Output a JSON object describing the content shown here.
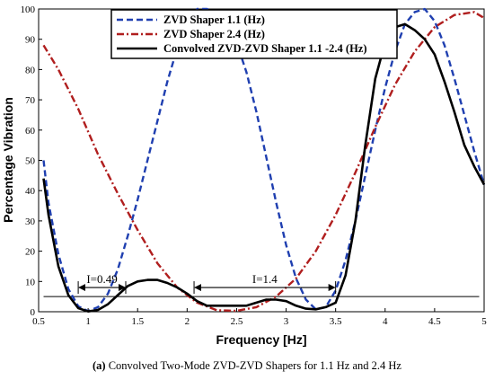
{
  "caption": {
    "tag": "(a)",
    "text": "Convolved Two-Mode ZVD-ZVD Shapers for 1.1 Hz and 2.4 Hz"
  },
  "chart_data": {
    "type": "line",
    "title": "",
    "xlabel": "Frequency [Hz]",
    "ylabel": "Percentage Vibration",
    "xlim": [
      0.5,
      5
    ],
    "ylim": [
      0,
      100
    ],
    "xticks": [
      "0.5",
      "1",
      "1.5",
      "2",
      "2.5",
      "3",
      "3.5",
      "4",
      "4.5",
      "5"
    ],
    "yticks": [
      "0",
      "10",
      "20",
      "30",
      "40",
      "50",
      "60",
      "70",
      "80",
      "90",
      "100"
    ],
    "grid": false,
    "legend_position": "top-left",
    "series": [
      {
        "name": "ZVD Shaper 1.1 (Hz)",
        "color": "#1f3fb0",
        "style": "dashed",
        "x": [
          0.55,
          0.6,
          0.7,
          0.8,
          0.9,
          1.0,
          1.1,
          1.2,
          1.3,
          1.4,
          1.5,
          1.6,
          1.7,
          1.8,
          1.9,
          2.0,
          2.1,
          2.2,
          2.3,
          2.4,
          2.5,
          2.6,
          2.7,
          2.8,
          2.9,
          3.0,
          3.1,
          3.2,
          3.3,
          3.4,
          3.5,
          3.6,
          3.7,
          3.8,
          3.9,
          4.0,
          4.1,
          4.2,
          4.3,
          4.4,
          4.5,
          4.6,
          4.7,
          4.8,
          4.9,
          5.0
        ],
        "y": [
          50,
          36,
          19,
          7.5,
          1.8,
          0.2,
          1.5,
          6,
          14,
          25,
          37,
          50,
          63,
          76,
          87,
          95,
          100,
          100,
          99,
          96,
          89,
          79,
          66,
          51,
          36,
          22,
          11,
          4,
          0.8,
          1.5,
          7,
          17,
          30,
          45,
          60,
          74,
          86,
          95,
          99,
          100,
          96,
          88,
          77,
          65,
          53,
          42
        ]
      },
      {
        "name": "ZVD Shaper 2.4 (Hz)",
        "color": "#b01e1e",
        "style": "dash-dot",
        "x": [
          0.55,
          0.7,
          0.9,
          1.1,
          1.3,
          1.5,
          1.7,
          1.9,
          2.1,
          2.3,
          2.5,
          2.7,
          2.9,
          3.1,
          3.3,
          3.5,
          3.7,
          3.9,
          4.1,
          4.3,
          4.5,
          4.7,
          4.9,
          5.0
        ],
        "y": [
          88,
          80,
          67,
          52,
          39,
          27,
          16,
          8,
          3,
          0.5,
          0.3,
          1.5,
          5,
          11,
          20,
          32,
          46,
          61,
          75,
          86,
          94,
          98,
          99,
          97
        ]
      },
      {
        "name": "Convolved ZVD-ZVD Shaper 1.1 -2.4 (Hz)",
        "color": "#000000",
        "style": "solid",
        "x": [
          0.55,
          0.6,
          0.7,
          0.8,
          0.9,
          1.0,
          1.1,
          1.2,
          1.3,
          1.4,
          1.5,
          1.6,
          1.7,
          1.8,
          1.9,
          2.0,
          2.1,
          2.2,
          2.3,
          2.4,
          2.5,
          2.6,
          2.7,
          2.8,
          2.9,
          3.0,
          3.1,
          3.2,
          3.3,
          3.4,
          3.5,
          3.6,
          3.7,
          3.8,
          3.9,
          4.0,
          4.1,
          4.2,
          4.3,
          4.4,
          4.5,
          4.6,
          4.7,
          4.8,
          4.9,
          5.0
        ],
        "y": [
          44,
          32,
          15,
          5.5,
          1.2,
          0.1,
          0.6,
          2.5,
          5.5,
          8.5,
          10,
          10.5,
          10.5,
          9.5,
          8,
          6,
          3.5,
          2,
          2,
          2,
          2,
          2,
          3,
          4,
          4,
          3.5,
          2,
          1,
          0.8,
          1.5,
          3,
          12,
          30,
          55,
          77,
          89,
          94,
          95,
          93,
          90,
          85,
          76,
          66,
          55,
          48,
          42
        ]
      }
    ],
    "annotations": [
      {
        "label": "I=0.49",
        "x_from": 0.9,
        "x_to": 1.38,
        "y": 8
      },
      {
        "label": "I=1.4",
        "x_from": 2.07,
        "x_to": 3.5,
        "y": 8
      }
    ],
    "threshold": {
      "y": 5,
      "x_from": 0.55,
      "x_to": 4.95
    }
  }
}
